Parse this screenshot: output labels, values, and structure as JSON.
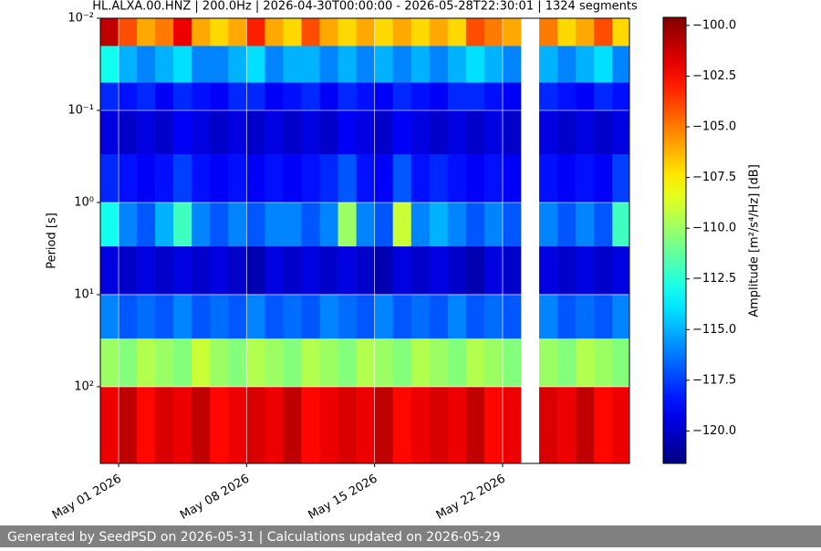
{
  "chart_data": {
    "type": "heatmap",
    "title": "HL.ALXA.00.HNZ | 200.0Hz | 2026-04-30T00:00:00 - 2026-05-28T22:30:01 | 1324 segments",
    "y_label": "Period [s]",
    "colorbar_label": "Amplitude [m²/s⁴/Hz] [dB]",
    "footer": "Generated by SeedPSD on 2026-05-31 | Calculations updated on 2026-05-29",
    "log_y": true,
    "y_inverted": true,
    "grid": true,
    "colormap": "jet",
    "xlim": [
      "2026-04-30T00:00:00",
      "2026-05-28T22:30:01"
    ],
    "xticks": [
      {
        "value": "2026-05-01",
        "label": "May 01 2026"
      },
      {
        "value": "2026-05-08",
        "label": "May 08 2026"
      },
      {
        "value": "2026-05-15",
        "label": "May 15 2026"
      },
      {
        "value": "2026-05-22",
        "label": "May 22 2026"
      }
    ],
    "ylim": [
      0.01,
      680
    ],
    "yticks": [
      {
        "value": 0.01,
        "label": "10⁻²"
      },
      {
        "value": 0.1,
        "label": "10⁻¹"
      },
      {
        "value": 1,
        "label": "10⁰"
      },
      {
        "value": 10,
        "label": "10¹"
      },
      {
        "value": 100,
        "label": "10²"
      }
    ],
    "clim": [
      -121.6,
      -99.6
    ],
    "cticks": [
      {
        "value": -100,
        "label": "−100.0"
      },
      {
        "value": -102.5,
        "label": "−102.5"
      },
      {
        "value": -105,
        "label": "−105.0"
      },
      {
        "value": -107.5,
        "label": "−107.5"
      },
      {
        "value": -110,
        "label": "−110.0"
      },
      {
        "value": -112.5,
        "label": "−112.5"
      },
      {
        "value": -115,
        "label": "−115.0"
      },
      {
        "value": -117.5,
        "label": "−117.5"
      },
      {
        "value": -120,
        "label": "−120.0"
      }
    ],
    "x_edges": [
      "2026-04-30",
      "2026-05-01",
      "2026-05-02",
      "2026-05-03",
      "2026-05-04",
      "2026-05-05",
      "2026-05-06",
      "2026-05-07",
      "2026-05-08",
      "2026-05-09",
      "2026-05-10",
      "2026-05-11",
      "2026-05-12",
      "2026-05-13",
      "2026-05-14",
      "2026-05-15",
      "2026-05-16",
      "2026-05-17",
      "2026-05-18",
      "2026-05-19",
      "2026-05-20",
      "2026-05-21",
      "2026-05-22",
      "2026-05-23",
      "2026-05-24",
      "2026-05-25",
      "2026-05-26",
      "2026-05-27",
      "2026-05-28",
      "2026-05-28T22:30:01"
    ],
    "y_edges": [
      0.01,
      0.02,
      0.05,
      0.1,
      0.3,
      1,
      3,
      10,
      30,
      100,
      680
    ],
    "z": [
      [
        -101,
        -104,
        -106,
        -105,
        -102,
        -106,
        -107,
        -106,
        -103,
        -106,
        -107,
        -104,
        -106,
        -107,
        -106,
        -107,
        -106,
        -107,
        -106,
        -107,
        -104,
        -105,
        -106,
        null,
        -105,
        -107,
        -106,
        -104,
        -107
      ],
      [
        -113,
        -115,
        -116,
        -115,
        -114,
        -116,
        -116,
        -115,
        -114,
        -116,
        -115,
        -115,
        -116,
        -115,
        -116,
        -115,
        -116,
        -115,
        -116,
        -115,
        -114,
        -115,
        -116,
        null,
        -115,
        -116,
        -115,
        -114,
        -116
      ],
      [
        -118,
        -118.5,
        -118,
        -119,
        -118,
        -118.5,
        -119,
        -118,
        -118,
        -119,
        -118.5,
        -118,
        -119,
        -118,
        -118.5,
        -119,
        -118,
        -118.5,
        -119,
        -118,
        -118,
        -118.5,
        -119,
        null,
        -118,
        -118.5,
        -119,
        -118,
        -118.5
      ],
      [
        -119.5,
        -120,
        -119.5,
        -120,
        -119,
        -119.5,
        -120,
        -119.5,
        -120,
        -119.5,
        -120,
        -119.5,
        -120,
        -119,
        -119.5,
        -120,
        -119,
        -119.5,
        -120,
        -119.5,
        -120,
        -119.5,
        -120,
        null,
        -119.5,
        -120,
        -119.5,
        -120,
        -119.5
      ],
      [
        -118,
        -118.5,
        -119,
        -118.5,
        -117.5,
        -118.5,
        -119,
        -118.5,
        -119,
        -118.5,
        -119,
        -118.5,
        -118,
        -117,
        -118.5,
        -119,
        -117,
        -118.5,
        -118,
        -118.5,
        -119,
        -118.5,
        -119,
        null,
        -118.5,
        -119,
        -118.5,
        -119,
        -117.5
      ],
      [
        -113,
        -116,
        -117,
        -115,
        -112,
        -116,
        -117,
        -116,
        -117,
        -116,
        -116,
        -117,
        -116,
        -110,
        -116,
        -117,
        -109,
        -116,
        -115,
        -116,
        -117,
        -116,
        -117,
        null,
        -116,
        -117,
        -116,
        -117,
        -112
      ],
      [
        -119.5,
        -120,
        -119.5,
        -120,
        -119.5,
        -120,
        -119.5,
        -120,
        -120.5,
        -119.5,
        -120,
        -119.5,
        -120,
        -119.5,
        -120,
        -120.5,
        -119.5,
        -120,
        -119.5,
        -120,
        -120.5,
        -119.5,
        -120,
        null,
        -119.5,
        -120,
        -119.5,
        -120,
        -119.5
      ],
      [
        -116,
        -117,
        -116.5,
        -117,
        -116,
        -117,
        -116.5,
        -117,
        -116,
        -117,
        -116.5,
        -117,
        -116,
        -116.5,
        -117,
        -116,
        -117,
        -116.5,
        -117,
        -116,
        -117,
        -116.5,
        -117,
        null,
        -116,
        -117,
        -116.5,
        -117,
        -116
      ],
      [
        -110,
        -110.5,
        -109.5,
        -110,
        -110.5,
        -109,
        -110,
        -110.5,
        -109.5,
        -110,
        -110.5,
        -109.5,
        -110,
        -110.5,
        -109.5,
        -110,
        -110.5,
        -109.5,
        -110,
        -110.5,
        -109.5,
        -110,
        -110.5,
        null,
        -110,
        -110.5,
        -109.5,
        -110,
        -110.5
      ],
      [
        -102,
        -101,
        -102.5,
        -101.5,
        -102,
        -101,
        -102.5,
        -102,
        -101.5,
        -102,
        -101,
        -102.5,
        -102,
        -101.5,
        -102,
        -101,
        -102.5,
        -102,
        -101.5,
        -102,
        -101,
        -102.5,
        -102,
        null,
        -101.5,
        -102,
        -101,
        -102.5,
        -102
      ]
    ]
  }
}
